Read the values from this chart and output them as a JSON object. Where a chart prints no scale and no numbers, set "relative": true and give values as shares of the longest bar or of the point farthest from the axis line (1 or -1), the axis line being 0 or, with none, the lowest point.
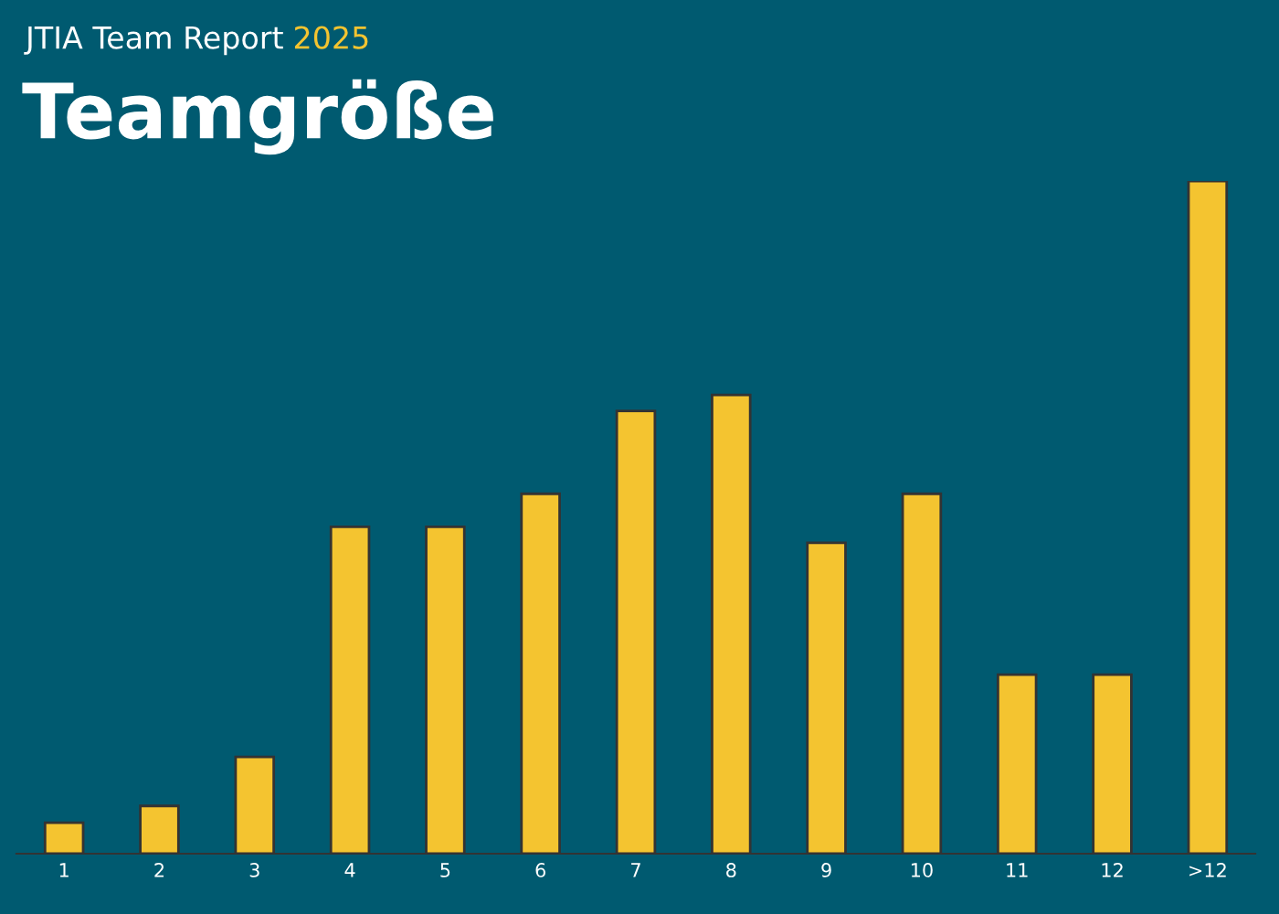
{
  "chart_data": {
    "type": "bar",
    "subtitle": "JTIA Team Report 2025",
    "title": "Teamgröße",
    "categories": [
      "1",
      "2",
      "3",
      "4",
      "5",
      "6",
      "7",
      "8",
      "9",
      "10",
      "11",
      "12",
      ">12"
    ],
    "values": [
      0.046,
      0.071,
      0.144,
      0.486,
      0.486,
      0.535,
      0.658,
      0.682,
      0.462,
      0.535,
      0.266,
      0.266,
      1
    ],
    "color": "#f4c430",
    "relative": true,
    "grid": false,
    "legend": false
  }
}
